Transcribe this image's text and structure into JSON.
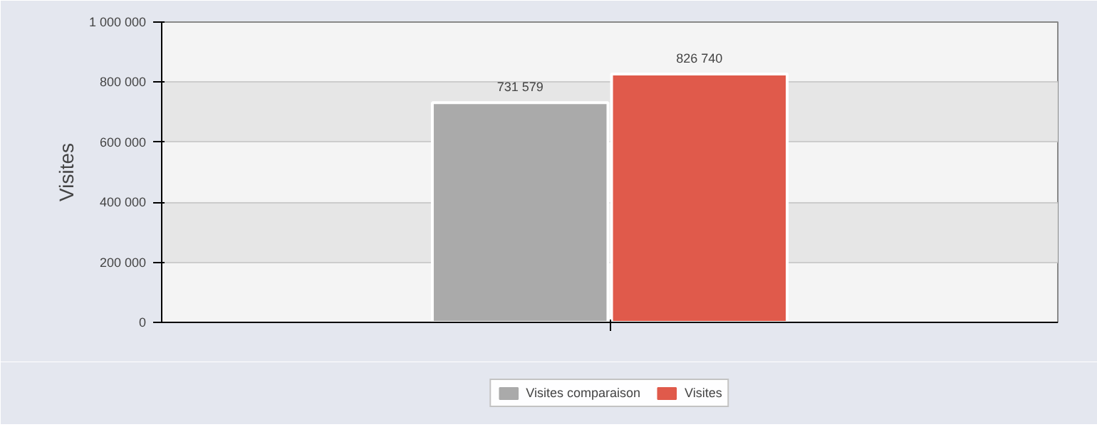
{
  "chart_data": {
    "type": "bar",
    "ylabel": "Visites",
    "categories": [
      null
    ],
    "series": [
      {
        "name": "Visites comparaison",
        "color": "#aaaaaa",
        "values": [
          731579
        ]
      },
      {
        "name": "Visites",
        "color": "#e05a4b",
        "values": [
          826740
        ]
      }
    ],
    "value_labels": [
      [
        "731 579"
      ],
      [
        "826 740"
      ]
    ],
    "ylim": [
      0,
      1000000
    ],
    "yticks": [
      {
        "value": 0,
        "label": "0"
      },
      {
        "value": 200000,
        "label": "200 000"
      },
      {
        "value": 400000,
        "label": "400 000"
      },
      {
        "value": 600000,
        "label": "600 000"
      },
      {
        "value": 800000,
        "label": "800 000"
      },
      {
        "value": 1000000,
        "label": "1 000 000"
      }
    ],
    "grid": "y",
    "legend": "bottom"
  }
}
